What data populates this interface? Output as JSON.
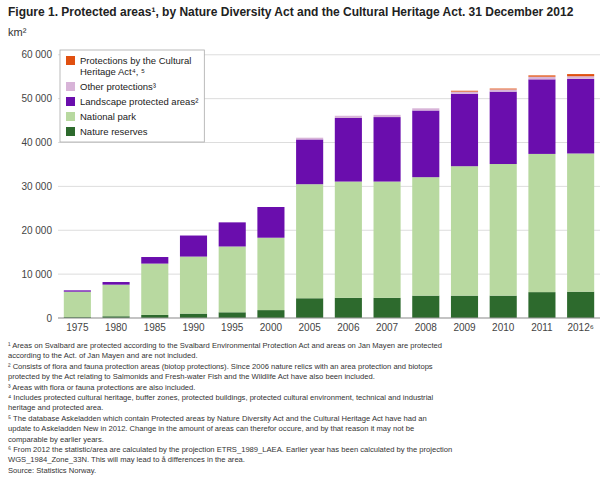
{
  "chart_data": {
    "type": "bar",
    "stacked": true,
    "title": "Figure 1. Protected areas¹, by Nature Diversity Act and the Cultural Heritage Act. 31 December 2012",
    "y_label": "km²",
    "categories": [
      "1975",
      "1980",
      "1985",
      "1990",
      "1995",
      "2000",
      "2005",
      "2006",
      "2007",
      "2008",
      "2009",
      "2010",
      "2011",
      "2012⁶"
    ],
    "series": [
      {
        "name": "Nature reserves",
        "color": "#2d6a2d",
        "values": [
          200,
          400,
          700,
          1000,
          1300,
          1800,
          4500,
          4600,
          4600,
          5100,
          5100,
          5100,
          5900,
          6000
        ]
      },
      {
        "name": "National park",
        "color": "#b8d9a0",
        "values": [
          5800,
          7200,
          11700,
          13000,
          15000,
          16500,
          26000,
          26500,
          26500,
          27000,
          29500,
          30000,
          31500,
          31500
        ]
      },
      {
        "name": "Landscape protected areas²",
        "color": "#6a0dad",
        "values": [
          300,
          600,
          1500,
          4800,
          5500,
          7000,
          10200,
          14500,
          14700,
          15200,
          16500,
          16500,
          17000,
          17000
        ]
      },
      {
        "name": "Other protections³",
        "color": "#d8b4d8",
        "values": [
          0,
          0,
          0,
          0,
          0,
          0,
          400,
          500,
          500,
          500,
          500,
          500,
          600,
          600
        ]
      },
      {
        "name": "Protections by the Cultural\nHeritage Act⁴, ⁵",
        "color": "#e05010",
        "values": [
          0,
          0,
          0,
          0,
          0,
          0,
          0,
          0,
          0,
          0,
          200,
          200,
          300,
          500
        ]
      }
    ],
    "ylim": [
      0,
      62000
    ],
    "yticks": [
      0,
      {
        "value": 10000,
        "label": "10 000"
      },
      {
        "value": 20000,
        "label": "20 000"
      },
      {
        "value": 30000,
        "label": "30 000"
      },
      {
        "value": 40000,
        "label": "40 000"
      },
      {
        "value": 50000,
        "label": "50 000"
      },
      {
        "value": 60000,
        "label": "60 000"
      }
    ],
    "grid": true,
    "legend": "upper left",
    "annotations": [
      "¹ Areas on Svalbard are protected according to the Svalbard Environmental Protection Act and areas on Jan Mayen are protected",
      "according to the Act. of Jan Mayen and are not included.",
      "² Consists of flora and fauna protection areas (biotop protections). Since 2006 nature relics with an area protection and biotops",
      "protected by the Act relating to Salmonids and Fresh-water Fish and the Wildlife Act have also been included.",
      "³ Areas with flora or fauna protections are also included.",
      "⁴ Includes protected cultural heritage, buffer zones, protected buildings, protected cultural environment, technical and industrial",
      "heritage and protected area.",
      "⁵ The database Askeladden which contain Protected areas by Nature Diversity Act and the Cultural Heritage Act have had an",
      "update to Askeladden New in 2012. Change in the amount of areas can therefor occure, and by that reason it may not be",
      "comparable by earlier years.",
      "⁶ From 2012 the statistic/area are calculated by the projection ETRS_1989_LAEA. Earlier year has been calculated by the projection",
      "WGS_1984_Zone_33N. This will may lead to å differences in the area.",
      "Source: Statistics Norway."
    ]
  }
}
